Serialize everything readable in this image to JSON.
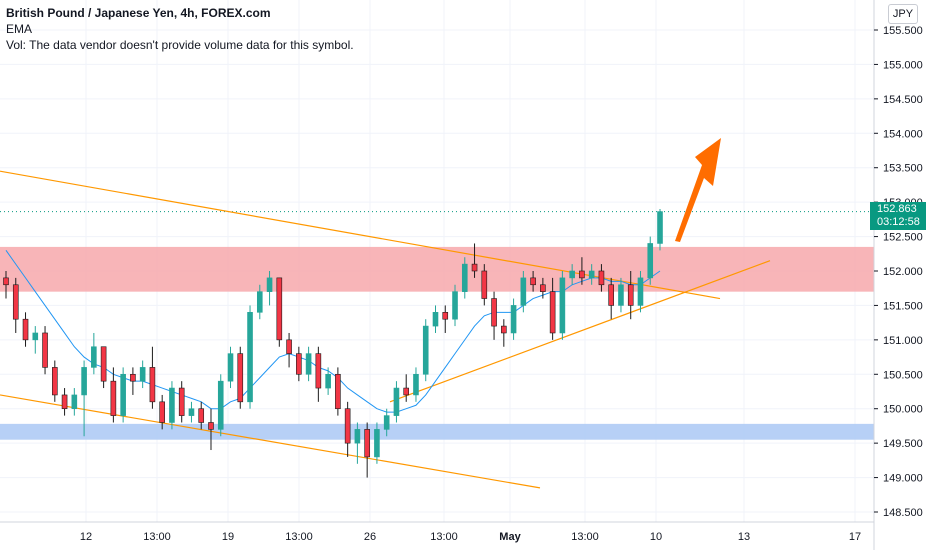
{
  "header": {
    "title": "British Pound / Japanese Yen, 4h, FOREX.com",
    "indicator": "EMA",
    "volume_note": "Vol: The data vendor doesn't provide volume data for this symbol."
  },
  "currency_button": "JPY",
  "current_price": {
    "value": "152.863",
    "countdown": "03:12:58"
  },
  "colors": {
    "up": "#089981",
    "down": "#f23645",
    "candle_up": "#26a69a",
    "candle_dark": "#1b1b1b",
    "ema": "#2196f3",
    "trendline": "#ff9800",
    "resistance_zone": "#f7a8ab",
    "support_zone": "#aac8f5",
    "arrow": "#ff6d00"
  },
  "chart_data": {
    "type": "candlestick",
    "symbol": "GBPJPY",
    "timeframe": "4h",
    "y_axis": {
      "ylim": [
        148.3,
        155.75
      ],
      "ticks": [
        "148.500",
        "149.000",
        "149.500",
        "150.000",
        "150.500",
        "151.000",
        "151.500",
        "152.000",
        "152.500",
        "153.000",
        "153.500",
        "154.000",
        "154.500",
        "155.000",
        "155.500"
      ]
    },
    "x_axis": {
      "ticks": [
        "12",
        "13:00",
        "19",
        "13:00",
        "26",
        "13:00",
        "May",
        "13:00",
        "10",
        "13",
        "17"
      ]
    },
    "zones": [
      {
        "name": "resistance",
        "from": 151.7,
        "to": 152.35
      },
      {
        "name": "support",
        "from": 149.55,
        "to": 149.78
      }
    ],
    "trendlines": [
      {
        "name": "upper-descending",
        "points": [
          [
            0,
            153.45
          ],
          [
            720,
            151.6
          ]
        ]
      },
      {
        "name": "lower-descending",
        "points": [
          [
            0,
            150.2
          ],
          [
            540,
            148.85
          ]
        ]
      },
      {
        "name": "ascending",
        "points": [
          [
            390,
            150.1
          ],
          [
            770,
            152.15
          ]
        ]
      }
    ],
    "candles": [
      {
        "o": 151.9,
        "h": 152.0,
        "l": 151.6,
        "c": 151.8
      },
      {
        "o": 151.8,
        "h": 151.9,
        "l": 151.1,
        "c": 151.3
      },
      {
        "o": 151.3,
        "h": 151.4,
        "l": 150.9,
        "c": 151.0
      },
      {
        "o": 151.0,
        "h": 151.2,
        "l": 150.8,
        "c": 151.1
      },
      {
        "o": 151.1,
        "h": 151.2,
        "l": 150.5,
        "c": 150.6
      },
      {
        "o": 150.6,
        "h": 150.7,
        "l": 150.1,
        "c": 150.2
      },
      {
        "o": 150.2,
        "h": 150.3,
        "l": 149.9,
        "c": 150.0
      },
      {
        "o": 150.0,
        "h": 150.3,
        "l": 149.9,
        "c": 150.2
      },
      {
        "o": 150.2,
        "h": 150.7,
        "l": 149.6,
        "c": 150.6
      },
      {
        "o": 150.6,
        "h": 151.1,
        "l": 150.5,
        "c": 150.9
      },
      {
        "o": 150.9,
        "h": 150.9,
        "l": 150.3,
        "c": 150.4
      },
      {
        "o": 150.4,
        "h": 150.6,
        "l": 149.8,
        "c": 149.9
      },
      {
        "o": 149.9,
        "h": 150.6,
        "l": 149.8,
        "c": 150.5
      },
      {
        "o": 150.5,
        "h": 150.6,
        "l": 150.2,
        "c": 150.4
      },
      {
        "o": 150.4,
        "h": 150.7,
        "l": 150.3,
        "c": 150.6
      },
      {
        "o": 150.6,
        "h": 150.9,
        "l": 150.0,
        "c": 150.1
      },
      {
        "o": 150.1,
        "h": 150.2,
        "l": 149.7,
        "c": 149.8
      },
      {
        "o": 149.8,
        "h": 150.4,
        "l": 149.7,
        "c": 150.3
      },
      {
        "o": 150.3,
        "h": 150.4,
        "l": 149.8,
        "c": 149.9
      },
      {
        "o": 149.9,
        "h": 150.1,
        "l": 149.8,
        "c": 150.0
      },
      {
        "o": 150.0,
        "h": 150.1,
        "l": 149.7,
        "c": 149.8
      },
      {
        "o": 149.8,
        "h": 150.0,
        "l": 149.4,
        "c": 149.7
      },
      {
        "o": 149.7,
        "h": 150.5,
        "l": 149.6,
        "c": 150.4
      },
      {
        "o": 150.4,
        "h": 150.9,
        "l": 150.3,
        "c": 150.8
      },
      {
        "o": 150.8,
        "h": 150.9,
        "l": 150.0,
        "c": 150.1
      },
      {
        "o": 150.1,
        "h": 151.5,
        "l": 150.0,
        "c": 151.4
      },
      {
        "o": 151.4,
        "h": 151.8,
        "l": 151.3,
        "c": 151.7
      },
      {
        "o": 151.7,
        "h": 152.0,
        "l": 151.5,
        "c": 151.9
      },
      {
        "o": 151.9,
        "h": 151.9,
        "l": 150.9,
        "c": 151.0
      },
      {
        "o": 151.0,
        "h": 151.1,
        "l": 150.6,
        "c": 150.8
      },
      {
        "o": 150.8,
        "h": 150.9,
        "l": 150.4,
        "c": 150.5
      },
      {
        "o": 150.5,
        "h": 150.9,
        "l": 150.4,
        "c": 150.8
      },
      {
        "o": 150.8,
        "h": 150.9,
        "l": 150.1,
        "c": 150.3
      },
      {
        "o": 150.3,
        "h": 150.6,
        "l": 150.2,
        "c": 150.5
      },
      {
        "o": 150.5,
        "h": 150.6,
        "l": 149.9,
        "c": 150.0
      },
      {
        "o": 150.0,
        "h": 150.1,
        "l": 149.3,
        "c": 149.5
      },
      {
        "o": 149.5,
        "h": 149.8,
        "l": 149.2,
        "c": 149.7
      },
      {
        "o": 149.7,
        "h": 149.8,
        "l": 149.0,
        "c": 149.3
      },
      {
        "o": 149.3,
        "h": 149.8,
        "l": 149.2,
        "c": 149.7
      },
      {
        "o": 149.7,
        "h": 150.0,
        "l": 149.6,
        "c": 149.9
      },
      {
        "o": 149.9,
        "h": 150.4,
        "l": 149.8,
        "c": 150.3
      },
      {
        "o": 150.3,
        "h": 150.5,
        "l": 150.1,
        "c": 150.2
      },
      {
        "o": 150.2,
        "h": 150.6,
        "l": 150.1,
        "c": 150.5
      },
      {
        "o": 150.5,
        "h": 151.3,
        "l": 150.4,
        "c": 151.2
      },
      {
        "o": 151.2,
        "h": 151.5,
        "l": 151.1,
        "c": 151.4
      },
      {
        "o": 151.4,
        "h": 151.5,
        "l": 151.1,
        "c": 151.3
      },
      {
        "o": 151.3,
        "h": 151.8,
        "l": 151.2,
        "c": 151.7
      },
      {
        "o": 151.7,
        "h": 152.2,
        "l": 151.6,
        "c": 152.1
      },
      {
        "o": 152.1,
        "h": 152.4,
        "l": 151.9,
        "c": 152.0
      },
      {
        "o": 152.0,
        "h": 152.1,
        "l": 151.5,
        "c": 151.6
      },
      {
        "o": 151.6,
        "h": 151.7,
        "l": 151.0,
        "c": 151.2
      },
      {
        "o": 151.2,
        "h": 151.3,
        "l": 150.9,
        "c": 151.1
      },
      {
        "o": 151.1,
        "h": 151.6,
        "l": 151.0,
        "c": 151.5
      },
      {
        "o": 151.5,
        "h": 152.0,
        "l": 151.4,
        "c": 151.9
      },
      {
        "o": 151.9,
        "h": 152.0,
        "l": 151.7,
        "c": 151.8
      },
      {
        "o": 151.8,
        "h": 151.9,
        "l": 151.6,
        "c": 151.7
      },
      {
        "o": 151.7,
        "h": 151.9,
        "l": 151.0,
        "c": 151.1
      },
      {
        "o": 151.1,
        "h": 152.0,
        "l": 151.0,
        "c": 151.9
      },
      {
        "o": 151.9,
        "h": 152.1,
        "l": 151.8,
        "c": 152.0
      },
      {
        "o": 152.0,
        "h": 152.2,
        "l": 151.8,
        "c": 151.9
      },
      {
        "o": 151.9,
        "h": 152.1,
        "l": 151.8,
        "c": 152.0
      },
      {
        "o": 152.0,
        "h": 152.1,
        "l": 151.7,
        "c": 151.8
      },
      {
        "o": 151.8,
        "h": 151.9,
        "l": 151.3,
        "c": 151.5
      },
      {
        "o": 151.5,
        "h": 151.9,
        "l": 151.4,
        "c": 151.8
      },
      {
        "o": 151.8,
        "h": 152.0,
        "l": 151.3,
        "c": 151.5
      },
      {
        "o": 151.5,
        "h": 152.0,
        "l": 151.4,
        "c": 151.9
      },
      {
        "o": 151.9,
        "h": 152.5,
        "l": 151.8,
        "c": 152.4
      },
      {
        "o": 152.4,
        "h": 152.9,
        "l": 152.3,
        "c": 152.863
      }
    ],
    "ema": [
      152.3,
      152.1,
      151.9,
      151.7,
      151.5,
      151.3,
      151.1,
      150.9,
      150.75,
      150.65,
      150.6,
      150.5,
      150.45,
      150.4,
      150.4,
      150.35,
      150.3,
      150.25,
      150.2,
      150.15,
      150.1,
      150.0,
      150.0,
      150.1,
      150.15,
      150.3,
      150.45,
      150.6,
      150.75,
      150.8,
      150.75,
      150.7,
      150.6,
      150.55,
      150.45,
      150.3,
      150.2,
      150.1,
      150.0,
      149.95,
      149.95,
      150.0,
      150.05,
      150.2,
      150.4,
      150.6,
      150.8,
      151.0,
      151.2,
      151.35,
      151.4,
      151.4,
      151.4,
      151.5,
      151.6,
      151.65,
      151.7,
      151.7,
      151.8,
      151.85,
      151.9,
      151.9,
      151.85,
      151.85,
      151.8,
      151.8,
      151.9,
      152.0
    ]
  }
}
